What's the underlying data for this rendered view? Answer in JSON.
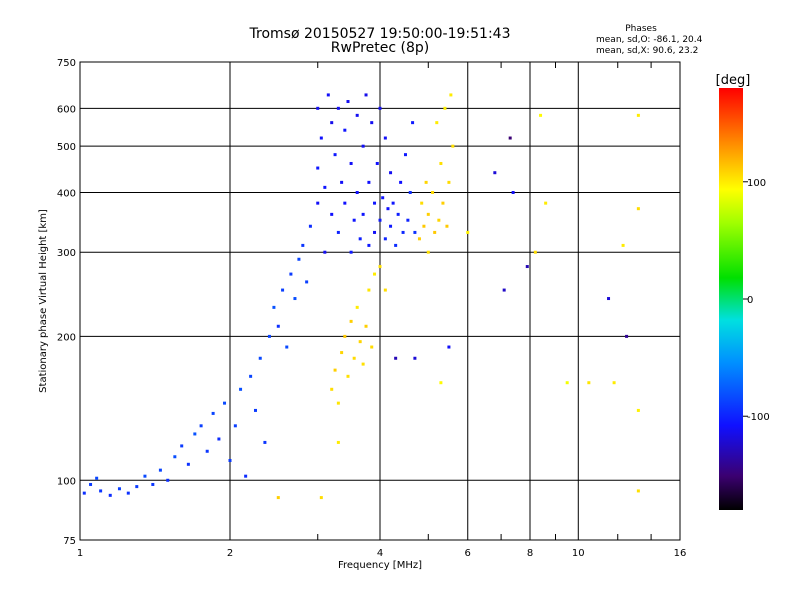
{
  "header": {
    "title_line1": "Tromsø 20150527 19:50:00-19:51:43",
    "title_line2": "RwPretec (8p)"
  },
  "stats": {
    "heading": "Phases",
    "line_o": "mean, sd,O: -86.1, 20.4",
    "line_x": "mean, sd,X:  90.6, 23.2"
  },
  "colorbar": {
    "unit_label": "[deg]",
    "ticks": [
      100,
      0,
      -100
    ],
    "range": [
      -180,
      180
    ]
  },
  "chart_data": {
    "type": "scatter",
    "title": "Tromsø 20150527 19:50:00-19:51:43",
    "subtitle": "RwPretec (8p)",
    "xlabel": "Frequency [MHz]",
    "ylabel": "Stationary phase Virtual Height [km]",
    "xscale": "log",
    "yscale": "log",
    "xlim": [
      1,
      16
    ],
    "ylim": [
      75,
      750
    ],
    "xticks": [
      1,
      2,
      4,
      6,
      8,
      10,
      16
    ],
    "yticks": [
      75,
      100,
      200,
      300,
      400,
      500,
      600,
      750
    ],
    "grid": true,
    "colorbar_label": "[deg]",
    "series": [
      {
        "points": [
          [
            1.02,
            94,
            -95
          ],
          [
            1.05,
            98,
            -90
          ],
          [
            1.08,
            101,
            -85
          ],
          [
            1.1,
            95,
            -92
          ],
          [
            1.15,
            93,
            -96
          ],
          [
            1.2,
            96,
            -88
          ],
          [
            1.25,
            94,
            -94
          ],
          [
            1.3,
            97,
            -90
          ],
          [
            1.35,
            102,
            -84
          ],
          [
            1.4,
            98,
            -92
          ],
          [
            1.45,
            105,
            -86
          ],
          [
            1.5,
            100,
            -95
          ],
          [
            1.55,
            112,
            -82
          ],
          [
            1.6,
            118,
            -90
          ],
          [
            1.65,
            108,
            -94
          ],
          [
            1.7,
            125,
            -80
          ],
          [
            1.75,
            130,
            -88
          ],
          [
            1.8,
            115,
            -92
          ],
          [
            1.85,
            138,
            -86
          ],
          [
            1.9,
            122,
            -96
          ],
          [
            1.95,
            145,
            -84
          ],
          [
            2.0,
            110,
            -90
          ],
          [
            2.05,
            130,
            -88
          ],
          [
            2.1,
            155,
            -82
          ],
          [
            2.15,
            102,
            -96
          ],
          [
            2.2,
            165,
            -86
          ],
          [
            2.25,
            140,
            -90
          ],
          [
            2.3,
            180,
            -84
          ],
          [
            2.35,
            120,
            -92
          ],
          [
            2.4,
            200,
            -86
          ],
          [
            2.45,
            230,
            -80
          ],
          [
            2.5,
            210,
            -95
          ],
          [
            2.55,
            250,
            -88
          ],
          [
            2.6,
            190,
            -84
          ],
          [
            2.65,
            270,
            -90
          ],
          [
            2.7,
            240,
            -82
          ],
          [
            2.75,
            290,
            -86
          ],
          [
            2.8,
            310,
            -92
          ],
          [
            2.85,
            260,
            -88
          ],
          [
            2.9,
            340,
            -96
          ],
          [
            3.0,
            380,
            -110
          ],
          [
            3.0,
            450,
            -105
          ],
          [
            3.0,
            600,
            -112
          ],
          [
            3.05,
            520,
            -108
          ],
          [
            3.1,
            300,
            -112
          ],
          [
            3.1,
            410,
            -106
          ],
          [
            3.15,
            640,
            -110
          ],
          [
            3.2,
            560,
            -114
          ],
          [
            3.2,
            360,
            -108
          ],
          [
            3.25,
            480,
            -104
          ],
          [
            3.3,
            600,
            -112
          ],
          [
            3.3,
            330,
            -100
          ],
          [
            3.35,
            420,
            -110
          ],
          [
            3.4,
            540,
            -106
          ],
          [
            3.4,
            380,
            -108
          ],
          [
            3.45,
            620,
            -112
          ],
          [
            3.5,
            300,
            -104
          ],
          [
            3.5,
            460,
            -110
          ],
          [
            3.55,
            350,
            -106
          ],
          [
            3.6,
            580,
            -112
          ],
          [
            3.6,
            400,
            -108
          ],
          [
            3.65,
            320,
            -102
          ],
          [
            3.7,
            500,
            -110
          ],
          [
            3.7,
            360,
            -106
          ],
          [
            3.75,
            640,
            -114
          ],
          [
            3.8,
            420,
            -108
          ],
          [
            3.8,
            310,
            -104
          ],
          [
            3.85,
            560,
            -112
          ],
          [
            3.9,
            380,
            -106
          ],
          [
            3.9,
            330,
            -110
          ],
          [
            3.95,
            460,
            -108
          ],
          [
            4.0,
            350,
            -104
          ],
          [
            4.0,
            600,
            -112
          ],
          [
            4.05,
            390,
            -106
          ],
          [
            4.1,
            320,
            -100
          ],
          [
            4.1,
            520,
            -110
          ],
          [
            4.15,
            370,
            -108
          ],
          [
            4.2,
            340,
            -104
          ],
          [
            4.2,
            440,
            -112
          ],
          [
            4.25,
            380,
            -106
          ],
          [
            4.3,
            310,
            -96
          ],
          [
            4.35,
            360,
            -102
          ],
          [
            4.4,
            420,
            -108
          ],
          [
            4.45,
            330,
            -98
          ],
          [
            4.5,
            480,
            -104
          ],
          [
            4.55,
            350,
            -100
          ],
          [
            4.6,
            400,
            -96
          ],
          [
            4.65,
            560,
            -104
          ],
          [
            4.7,
            330,
            -94
          ],
          [
            4.8,
            320,
            110
          ],
          [
            4.85,
            380,
            105
          ],
          [
            4.9,
            340,
            112
          ],
          [
            4.95,
            420,
            108
          ],
          [
            5.0,
            300,
            104
          ],
          [
            5.0,
            360,
            110
          ],
          [
            5.1,
            400,
            106
          ],
          [
            5.15,
            330,
            112
          ],
          [
            5.2,
            560,
            100
          ],
          [
            5.25,
            350,
            108
          ],
          [
            5.3,
            460,
            104
          ],
          [
            5.35,
            380,
            110
          ],
          [
            5.4,
            600,
            98
          ],
          [
            5.45,
            340,
            112
          ],
          [
            5.5,
            420,
            106
          ],
          [
            5.55,
            640,
            100
          ],
          [
            5.6,
            500,
            104
          ],
          [
            3.2,
            155,
            105
          ],
          [
            3.25,
            170,
            110
          ],
          [
            3.3,
            145,
            102
          ],
          [
            3.35,
            185,
            108
          ],
          [
            3.4,
            200,
            112
          ],
          [
            3.45,
            165,
            104
          ],
          [
            3.5,
            215,
            110
          ],
          [
            3.55,
            180,
            106
          ],
          [
            3.6,
            230,
            100
          ],
          [
            3.65,
            195,
            108
          ],
          [
            3.7,
            175,
            104
          ],
          [
            3.75,
            210,
            110
          ],
          [
            3.8,
            250,
            102
          ],
          [
            3.85,
            190,
            106
          ],
          [
            3.9,
            270,
            100
          ],
          [
            4.0,
            280,
            104
          ],
          [
            2.5,
            92,
            110
          ],
          [
            3.05,
            92,
            105
          ],
          [
            3.3,
            120,
            100
          ],
          [
            4.1,
            250,
            105
          ],
          [
            4.3,
            180,
            -130
          ],
          [
            4.7,
            180,
            -120
          ],
          [
            5.3,
            160,
            95
          ],
          [
            5.5,
            190,
            -110
          ],
          [
            6.0,
            330,
            98
          ],
          [
            6.8,
            440,
            -120
          ],
          [
            7.1,
            250,
            -125
          ],
          [
            7.3,
            520,
            -150
          ],
          [
            7.4,
            400,
            -110
          ],
          [
            7.9,
            280,
            -130
          ],
          [
            8.2,
            300,
            105
          ],
          [
            8.4,
            580,
            95
          ],
          [
            8.6,
            380,
            100
          ],
          [
            9.5,
            160,
            90
          ],
          [
            10.5,
            160,
            102
          ],
          [
            11.5,
            240,
            -120
          ],
          [
            11.8,
            160,
            100
          ],
          [
            12.5,
            200,
            -140
          ],
          [
            12.3,
            310,
            100
          ],
          [
            13.2,
            580,
            100
          ],
          [
            13.2,
            370,
            105
          ],
          [
            13.2,
            140,
            98
          ],
          [
            13.2,
            95,
            104
          ]
        ]
      }
    ]
  }
}
